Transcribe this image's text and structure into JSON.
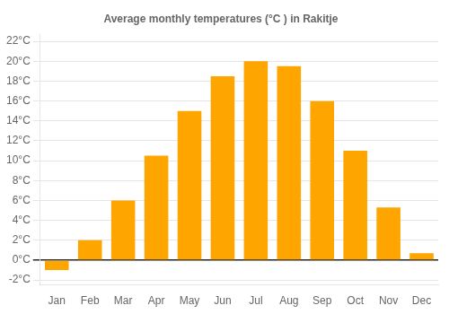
{
  "chart_data": {
    "type": "bar",
    "title": "Average monthly temperatures (°C ) in Rakitje",
    "categories": [
      "Jan",
      "Feb",
      "Mar",
      "Apr",
      "May",
      "Jun",
      "Jul",
      "Aug",
      "Sep",
      "Oct",
      "Nov",
      "Dec"
    ],
    "values": [
      -1.0,
      2.0,
      6.0,
      10.5,
      15.0,
      18.5,
      20.0,
      19.5,
      16.0,
      11.0,
      5.3,
      0.7
    ],
    "color": "#FFA500",
    "ylim": [
      -2.5,
      22.7
    ],
    "yticks": [
      {
        "value": -2,
        "label": "-2°C"
      },
      {
        "value": 0,
        "label": "0°C"
      },
      {
        "value": 2,
        "label": "2°C"
      },
      {
        "value": 4,
        "label": "4°C"
      },
      {
        "value": 6,
        "label": "6°C"
      },
      {
        "value": 8,
        "label": "8°C"
      },
      {
        "value": 10,
        "label": "10°C"
      },
      {
        "value": 12,
        "label": "12°C"
      },
      {
        "value": 14,
        "label": "14°C"
      },
      {
        "value": 16,
        "label": "16°C"
      },
      {
        "value": 18,
        "label": "18°C"
      },
      {
        "value": 20,
        "label": "20°C"
      },
      {
        "value": 22,
        "label": "22°C"
      }
    ],
    "grid": true
  }
}
